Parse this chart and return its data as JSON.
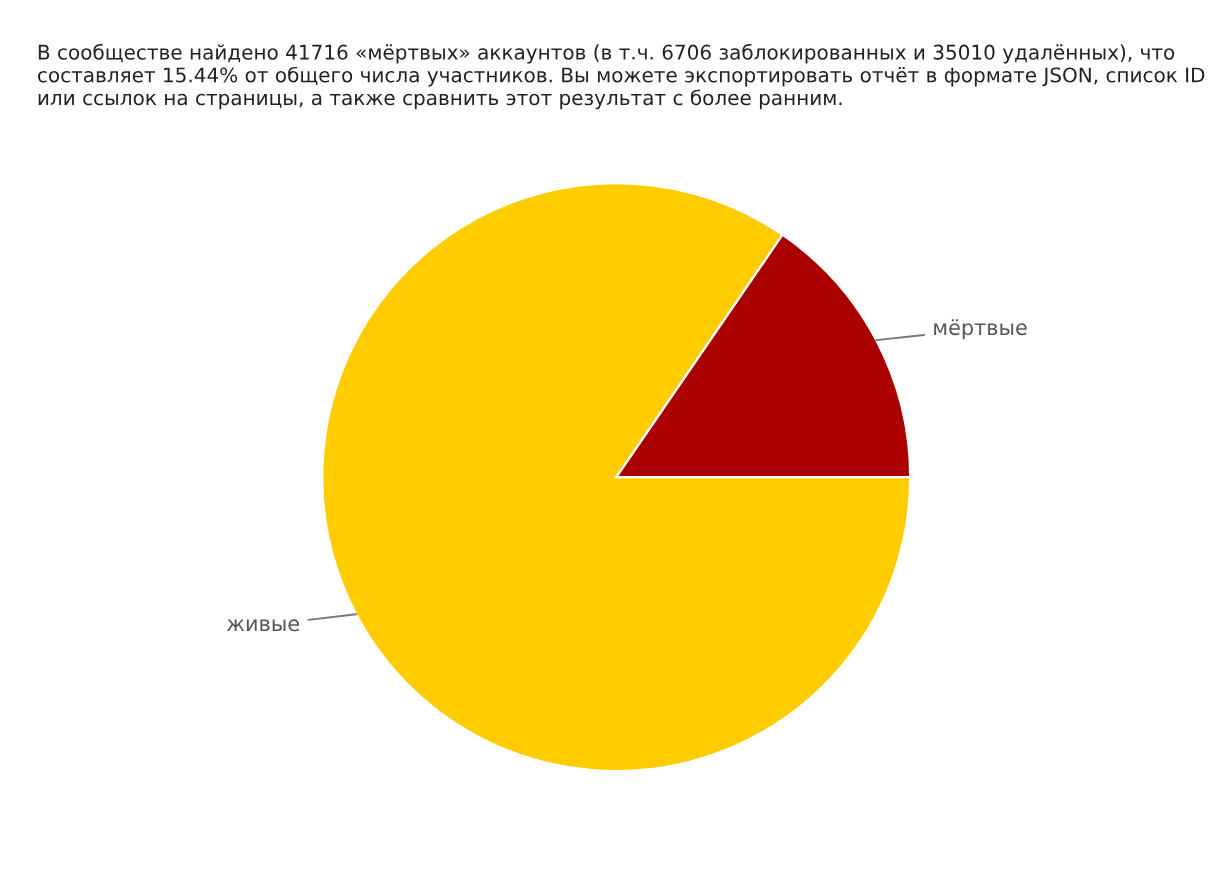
{
  "chart_data": {
    "type": "pie",
    "title": "В сообществе найдено 41716 «мёртвых» аккаунтов (в т.ч. 6706 заблокированных и 35010 удалённых), что составляет 15.44% от общего числа участников. Вы можете экспортировать отчёт в формате JSON, список ID или ссылок на страницы, а также сравнить этот результат с более ранним.",
    "categories": [
      "мёртвые",
      "живые"
    ],
    "values": [
      15.44,
      84.56
    ],
    "colors": [
      "#aa0000",
      "#ffcc00"
    ]
  }
}
